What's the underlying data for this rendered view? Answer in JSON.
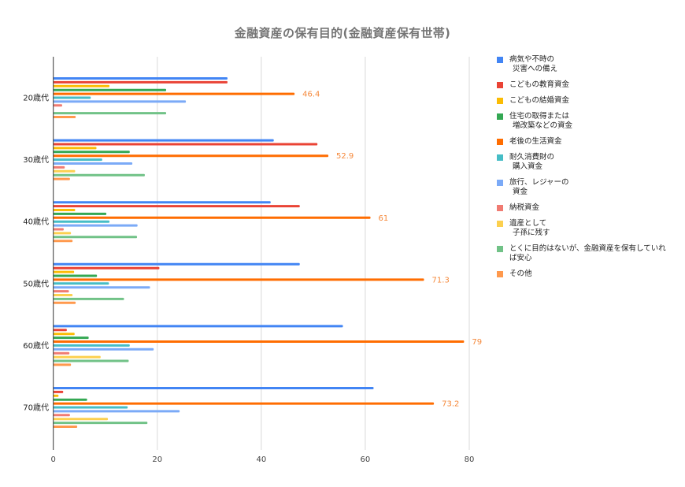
{
  "chart_data": {
    "type": "bar",
    "orientation": "horizontal",
    "title": "金融資産の保有目的(金融資産保有世帯)",
    "xlabel": "",
    "ylabel": "",
    "categories": [
      "20歳代",
      "30歳代",
      "40歳代",
      "50歳代",
      "60歳代",
      "70歳代"
    ],
    "xlim": [
      0,
      80
    ],
    "x_ticks": [
      "0",
      "20",
      "40",
      "60",
      "80"
    ],
    "grid": true,
    "legend_position": "right",
    "series": [
      {
        "name": "病気や不時の災害への備え",
        "legend_lines": [
          "病気や不時の",
          "災害への備え"
        ],
        "color": "#4285F4",
        "values": [
          33.5,
          42.4,
          41.8,
          47.4,
          55.7,
          61.6
        ]
      },
      {
        "name": "こどもの教育資金",
        "legend_lines": [
          "こどもの教育資金"
        ],
        "color": "#EA4335",
        "values": [
          33.5,
          50.8,
          47.4,
          20.4,
          2.6,
          1.9
        ]
      },
      {
        "name": "こどもの結婚資金",
        "legend_lines": [
          "こどもの結婚資金"
        ],
        "color": "#FBBC04",
        "values": [
          10.8,
          8.3,
          4.2,
          4.0,
          4.1,
          1.0
        ]
      },
      {
        "name": "住宅の取得または増改築などの資金",
        "legend_lines": [
          "住宅の取得または",
          "増改築などの資金"
        ],
        "color": "#34A853",
        "values": [
          21.7,
          14.7,
          10.2,
          8.4,
          6.8,
          6.5
        ]
      },
      {
        "name": "老後の生活資金",
        "legend_lines": [
          "老後の生活資金"
        ],
        "color": "#FF6D01",
        "values": [
          46.4,
          52.9,
          61,
          71.3,
          79,
          73.2
        ],
        "data_labels": [
          "46.4",
          "52.9",
          "61",
          "71.3",
          "79",
          "73.2"
        ],
        "data_label_color": "#F5883A"
      },
      {
        "name": "耐久消費財の購入資金",
        "legend_lines": [
          "耐久消費財の",
          "購入資金"
        ],
        "color": "#46BDC6",
        "values": [
          7.2,
          9.4,
          10.8,
          10.7,
          14.7,
          14.3
        ]
      },
      {
        "name": "旅行、レジャーの資金",
        "legend_lines": [
          "旅行、レジャーの",
          "資金"
        ],
        "color": "#7BAAF7",
        "values": [
          25.5,
          15.2,
          16.2,
          18.6,
          19.3,
          24.3
        ]
      },
      {
        "name": "納税資金",
        "legend_lines": [
          "納税資金"
        ],
        "color": "#F07B72",
        "values": [
          1.7,
          2.2,
          2.0,
          3.0,
          3.1,
          3.2
        ]
      },
      {
        "name": "遺産として子孫に残す",
        "legend_lines": [
          "遺産として",
          "子孫に残す"
        ],
        "color": "#FCD04F",
        "values": [
          0,
          4.2,
          3.4,
          3.7,
          9.1,
          10.5
        ]
      },
      {
        "name": "とくに目的はないが、金融資産を保有していれば安心",
        "legend_lines": [
          "とくに目的はないが、金融資産を保有していれ",
          "ば安心"
        ],
        "color": "#71C287",
        "values": [
          21.7,
          17.6,
          16.1,
          13.6,
          14.5,
          18.1
        ]
      },
      {
        "name": "その他",
        "legend_lines": [
          "その他"
        ],
        "color": "#FF994D",
        "values": [
          4.3,
          3.2,
          3.7,
          4.3,
          3.4,
          4.6
        ]
      }
    ]
  }
}
